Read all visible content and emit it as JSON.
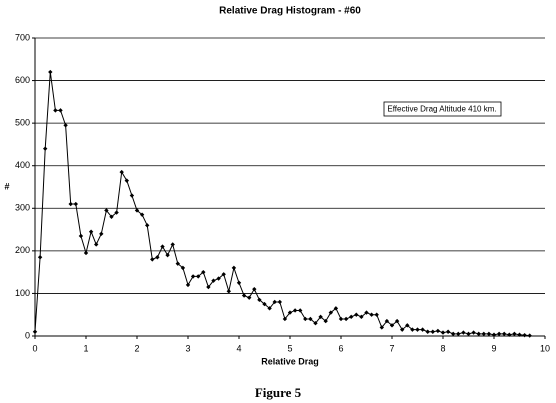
{
  "chart_data": {
    "type": "line",
    "title": "Relative Drag Histogram - #60",
    "x_label": "Relative Drag",
    "y_label": "#",
    "annotation": "Effective Drag Altitude 410 km.",
    "caption": "Figure 5",
    "color": "#000000",
    "grid": true,
    "xlim": [
      0,
      10
    ],
    "xticks": [
      0,
      1,
      2,
      3,
      4,
      5,
      6,
      7,
      8,
      9,
      10
    ],
    "ylim": [
      0,
      700
    ],
    "yticks": [
      0,
      100,
      200,
      300,
      400,
      500,
      600,
      700
    ],
    "x": [
      0,
      0.1,
      0.2,
      0.3,
      0.4,
      0.5,
      0.6,
      0.7,
      0.8,
      0.9,
      1,
      1.1,
      1.2,
      1.3,
      1.4,
      1.5,
      1.6,
      1.7,
      1.8,
      1.9,
      2,
      2.1,
      2.2,
      2.3,
      2.4,
      2.5,
      2.6,
      2.7,
      2.8,
      2.9,
      3,
      3.1,
      3.2,
      3.3,
      3.4,
      3.5,
      3.6,
      3.7,
      3.8,
      3.9,
      4,
      4.1,
      4.2,
      4.3,
      4.4,
      4.5,
      4.6,
      4.7,
      4.8,
      4.9,
      5,
      5.1,
      5.2,
      5.3,
      5.4,
      5.5,
      5.6,
      5.7,
      5.8,
      5.9,
      6,
      6.1,
      6.2,
      6.3,
      6.4,
      6.5,
      6.6,
      6.7,
      6.8,
      6.9,
      7,
      7.1,
      7.2,
      7.3,
      7.4,
      7.5,
      7.6,
      7.7,
      7.8,
      7.9,
      8,
      8.1,
      8.2,
      8.3,
      8.4,
      8.5,
      8.6,
      8.7,
      8.8,
      8.9,
      9,
      9.1,
      9.2,
      9.3,
      9.4,
      9.5,
      9.6,
      9.7
    ],
    "values": [
      10,
      185,
      440,
      620,
      530,
      530,
      495,
      310,
      310,
      235,
      195,
      245,
      215,
      240,
      295,
      280,
      290,
      385,
      365,
      330,
      295,
      285,
      260,
      180,
      185,
      210,
      190,
      215,
      170,
      160,
      120,
      140,
      140,
      150,
      115,
      130,
      135,
      145,
      105,
      160,
      125,
      95,
      90,
      110,
      85,
      75,
      65,
      80,
      80,
      40,
      55,
      60,
      60,
      40,
      40,
      30,
      45,
      35,
      55,
      65,
      40,
      40,
      45,
      50,
      45,
      55,
      50,
      50,
      20,
      35,
      25,
      35,
      15,
      25,
      15,
      15,
      15,
      10,
      10,
      12,
      8,
      10,
      5,
      5,
      8,
      5,
      8,
      5,
      5,
      5,
      3,
      5,
      5,
      3,
      5,
      3,
      2,
      1
    ]
  }
}
